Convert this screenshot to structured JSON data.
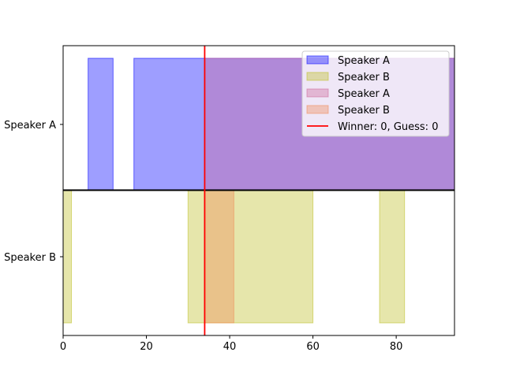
{
  "chart_data": {
    "type": "area",
    "xlim": [
      0,
      94
    ],
    "xticks": [
      0,
      20,
      40,
      60,
      80
    ],
    "categories": [
      "Speaker A",
      "Speaker B"
    ],
    "series": [
      {
        "name": "Speaker A",
        "row": "Speaker A",
        "color": "#0000ff",
        "segments": [
          [
            6,
            12
          ],
          [
            17,
            94
          ]
        ]
      },
      {
        "name": "Speaker B",
        "row": "Speaker B",
        "color": "#bcbd22",
        "segments": [
          [
            0,
            2
          ],
          [
            30,
            60
          ],
          [
            76,
            82
          ]
        ]
      },
      {
        "name": "Speaker A",
        "row": "Speaker A",
        "color": "#cc6699",
        "segments": [
          [
            34,
            94
          ]
        ]
      },
      {
        "name": "Speaker B",
        "row": "Speaker B",
        "color": "#ee8855",
        "segments": [
          [
            34,
            41
          ]
        ]
      }
    ],
    "marker": {
      "x": 34,
      "label": "Winner: 0, Guess: 0",
      "color": "#ff0000"
    },
    "legend_placement": "top-right",
    "grid": false
  }
}
